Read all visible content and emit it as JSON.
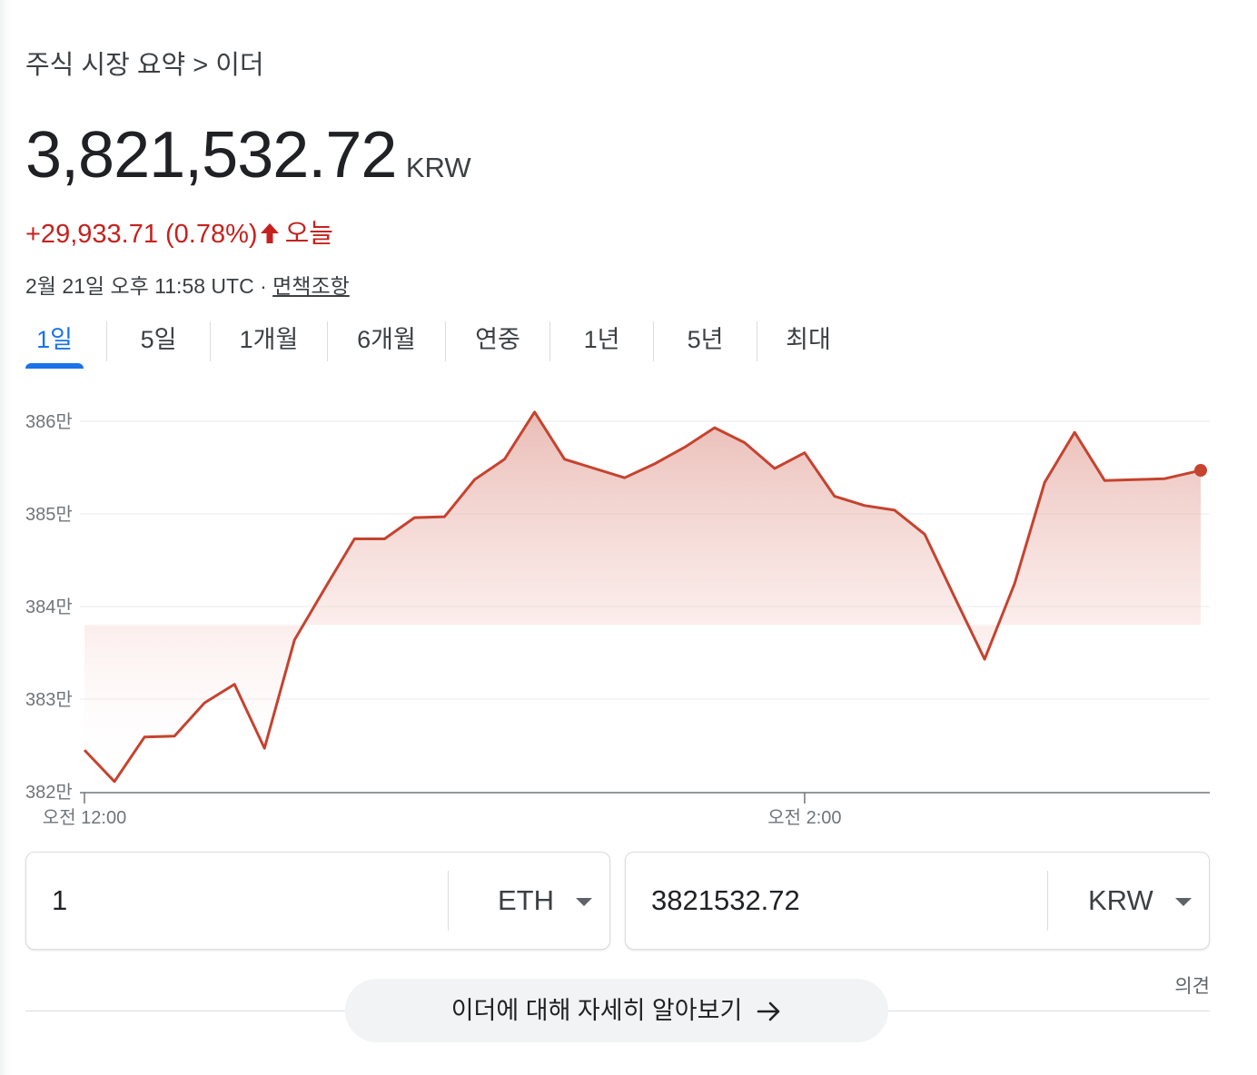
{
  "breadcrumb": "주식 시장 요약 > 이더",
  "price": {
    "value": "3,821,532.72",
    "currency": "KRW"
  },
  "change": {
    "text": "+29,933.71 (0.78%)",
    "direction_icon": "arrow-up-icon",
    "period": "오늘"
  },
  "timestamp": {
    "text": "2월 21일 오후 11:58 UTC · ",
    "disclaimer": "면책조항"
  },
  "tabs": [
    {
      "label": "1일",
      "active": true
    },
    {
      "label": "5일"
    },
    {
      "label": "1개월"
    },
    {
      "label": "6개월"
    },
    {
      "label": "연중"
    },
    {
      "label": "1년"
    },
    {
      "label": "5년"
    },
    {
      "label": "최대"
    }
  ],
  "colors": {
    "accent": "#1a73e8",
    "line": "#c5432f",
    "negative_text": "#c5221f"
  },
  "chart_data": {
    "type": "line",
    "y_tick_labels": [
      "386만",
      "385만",
      "384만",
      "383만",
      "382만"
    ],
    "y_ticks": [
      3860000,
      3850000,
      3840000,
      3830000,
      3820000
    ],
    "ylim": [
      3820000,
      3860000
    ],
    "x_tick_labels": [
      "오전 12:00",
      "오전 2:00"
    ],
    "x_ticks": [
      0,
      120
    ],
    "xlim": [
      0,
      186
    ],
    "series": [
      {
        "x": [
          0,
          5,
          10,
          15,
          20,
          25,
          30,
          35,
          40,
          45,
          50,
          55,
          60,
          65,
          70,
          75,
          80,
          85,
          90,
          95,
          100,
          105,
          110,
          115,
          120,
          125,
          130,
          135,
          140,
          145,
          150,
          155,
          160,
          165,
          170,
          175,
          180,
          186
        ],
        "y": [
          3824500,
          3821100,
          3825900,
          3826000,
          3829600,
          3831600,
          3824700,
          3836400,
          3841900,
          3847300,
          3847300,
          3849600,
          3849700,
          3853700,
          3855900,
          3861000,
          3855900,
          3854900,
          3853900,
          3855400,
          3857200,
          3859300,
          3857700,
          3854900,
          3856600,
          3851900,
          3850900,
          3850400,
          3847800,
          3841000,
          3834300,
          3842500,
          3853400,
          3858800,
          3853600,
          3853700,
          3853800,
          3854700
        ]
      }
    ]
  },
  "converter": {
    "from": {
      "amount": "1",
      "currency": "ETH"
    },
    "to": {
      "amount": "3821532.72",
      "currency": "KRW"
    }
  },
  "feedback_label": "의견",
  "learn_more_label": "이더에 대해 자세히 알아보기"
}
